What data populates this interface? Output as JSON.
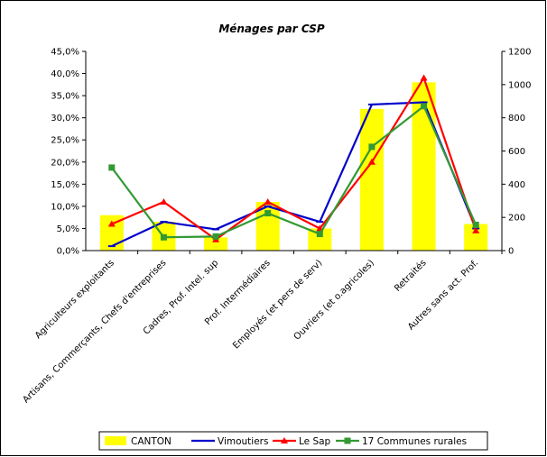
{
  "chart_data": {
    "type": "bar",
    "title": "Ménages par CSP",
    "categories": [
      "Agriculteurs exploitants",
      "Artisans, Commerçants, Chefs d'entreprises",
      "Cadres, Prof. Intel. sup",
      "Prof. Intermédiaires",
      "Employés (et pers de serv)",
      "Ouvriers (et o.agricoles)",
      "Retraités",
      "Autres sans act. Prof."
    ],
    "y_left": {
      "min": 0,
      "max": 0.45,
      "step": 0.05,
      "ticks": [
        "0,0%",
        "5,0%",
        "10,0%",
        "15,0%",
        "20,0%",
        "25,0%",
        "30,0%",
        "35,0%",
        "40,0%",
        "45,0%"
      ]
    },
    "y_right": {
      "min": 0,
      "max": 1200,
      "step": 200,
      "ticks": [
        "0",
        "200",
        "400",
        "600",
        "800",
        "1000",
        "1200"
      ]
    },
    "grid": false,
    "legend_position": "bottom",
    "series": [
      {
        "name": "CANTON",
        "kind": "bar",
        "axis": "left",
        "color": "#ffff00",
        "values": [
          0.08,
          0.065,
          0.03,
          0.11,
          0.05,
          0.32,
          0.38,
          0.06
        ]
      },
      {
        "name": "Vimoutiers",
        "kind": "line",
        "axis": "left",
        "color": "#0000cc",
        "values": [
          0.01,
          0.065,
          0.048,
          0.1,
          0.065,
          0.33,
          0.335,
          0.05
        ]
      },
      {
        "name": "Le Sap",
        "kind": "line",
        "axis": "left",
        "color": "#ff0000",
        "values": [
          0.06,
          0.11,
          0.025,
          0.11,
          0.05,
          0.2,
          0.39,
          0.045
        ]
      },
      {
        "name": "17 Communes rurales",
        "kind": "line",
        "axis": "right",
        "color": "#339933",
        "values": [
          500,
          80,
          85,
          225,
          100,
          625,
          870,
          155
        ]
      }
    ]
  }
}
